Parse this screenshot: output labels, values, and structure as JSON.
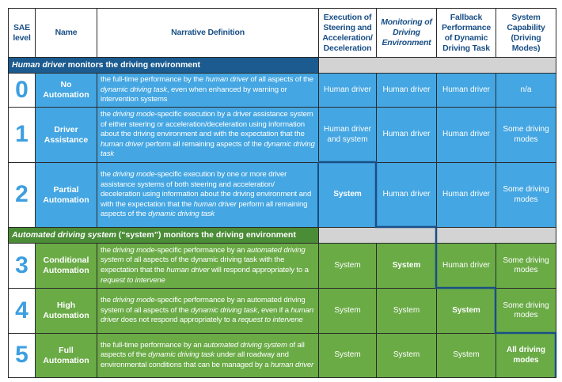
{
  "headers": [
    "SAE level",
    "Name",
    "Narrative Definition",
    "Execution of Steering and Acceleration/ Deceleration",
    "Monitoring of Driving Environment",
    "Fallback Performance of Dynamic Driving Task",
    "System Capability (Driving Modes)"
  ],
  "sections": [
    {
      "segments": [
        {
          "t": "Human driver",
          "i": true
        },
        {
          "t": " monitors the driving environment",
          "i": false
        }
      ]
    },
    {
      "segments": [
        {
          "t": "Automated driving system",
          "i": true
        },
        {
          "t": " (“system”) monitors the driving environment",
          "i": false
        }
      ]
    }
  ],
  "rows": [
    {
      "level": "0",
      "name": "No Automation",
      "definition": [
        {
          "t": "the full-time performance by the ",
          "i": false
        },
        {
          "t": "human driver",
          "i": true
        },
        {
          "t": " of all aspects of the ",
          "i": false
        },
        {
          "t": "dynamic driving task",
          "i": true
        },
        {
          "t": ", even when enhanced by warning or intervention systems",
          "i": false
        }
      ],
      "cells": [
        {
          "t": "Human driver",
          "b": false
        },
        {
          "t": "Human driver",
          "b": false
        },
        {
          "t": "Human driver",
          "b": false
        },
        {
          "t": "n/a",
          "b": false
        }
      ]
    },
    {
      "level": "1",
      "name": "Driver Assistance",
      "definition": [
        {
          "t": "the ",
          "i": false
        },
        {
          "t": "driving mode",
          "i": true
        },
        {
          "t": "-specific execution by a driver assistance system of either steering or acceleration/deceleration using information about the driving environment and with the expectation that the ",
          "i": false
        },
        {
          "t": "human driver",
          "i": true
        },
        {
          "t": " perform all remaining aspects of the ",
          "i": false
        },
        {
          "t": "dynamic driving task",
          "i": true
        }
      ],
      "cells": [
        {
          "t": "Human driver and system",
          "b": false
        },
        {
          "t": "Human driver",
          "b": false
        },
        {
          "t": "Human driver",
          "b": false
        },
        {
          "t": "Some driving modes",
          "b": false
        }
      ]
    },
    {
      "level": "2",
      "name": "Partial Automation",
      "definition": [
        {
          "t": "the ",
          "i": false
        },
        {
          "t": "driving mode",
          "i": true
        },
        {
          "t": "-specific execution by one or more driver assistance systems of both steering and acceleration/ deceleration using information about the driving environment and with the expectation that the ",
          "i": false
        },
        {
          "t": "human driver",
          "i": true
        },
        {
          "t": " perform all remaining aspects of the ",
          "i": false
        },
        {
          "t": "dynamic driving task",
          "i": true
        }
      ],
      "cells": [
        {
          "t": "System",
          "b": true
        },
        {
          "t": "Human driver",
          "b": false
        },
        {
          "t": "Human driver",
          "b": false
        },
        {
          "t": "Some driving modes",
          "b": false
        }
      ]
    },
    {
      "level": "3",
      "name": "Conditional Automation",
      "definition": [
        {
          "t": "the ",
          "i": false
        },
        {
          "t": "driving mode",
          "i": true
        },
        {
          "t": "-specific performance by an ",
          "i": false
        },
        {
          "t": "automated driving system",
          "i": true
        },
        {
          "t": " of all aspects of the dynamic driving task with the expectation that the ",
          "i": false
        },
        {
          "t": "human driver",
          "i": true
        },
        {
          "t": " will respond appropriately to a ",
          "i": false
        },
        {
          "t": "request to intervene",
          "i": true
        }
      ],
      "cells": [
        {
          "t": "System",
          "b": false
        },
        {
          "t": "System",
          "b": true
        },
        {
          "t": "Human driver",
          "b": false
        },
        {
          "t": "Some driving modes",
          "b": false
        }
      ]
    },
    {
      "level": "4",
      "name": "High Automation",
      "definition": [
        {
          "t": "the ",
          "i": false
        },
        {
          "t": "driving mode",
          "i": true
        },
        {
          "t": "-specific performance by an automated driving system of all aspects of the ",
          "i": false
        },
        {
          "t": "dynamic driving task",
          "i": true
        },
        {
          "t": ", even if a ",
          "i": false
        },
        {
          "t": "human driver",
          "i": true
        },
        {
          "t": " does not respond appropriately to a ",
          "i": false
        },
        {
          "t": "request to intervene",
          "i": true
        }
      ],
      "cells": [
        {
          "t": "System",
          "b": false
        },
        {
          "t": "System",
          "b": false
        },
        {
          "t": "System",
          "b": true
        },
        {
          "t": "Some driving modes",
          "b": false
        }
      ]
    },
    {
      "level": "5",
      "name": "Full Automation",
      "definition": [
        {
          "t": "the full-time performance by an ",
          "i": false
        },
        {
          "t": "automated driving system",
          "i": true
        },
        {
          "t": " of all aspects of the ",
          "i": false
        },
        {
          "t": "dynamic driving task",
          "i": true
        },
        {
          "t": " under all roadway and environmental conditions that can be managed by a ",
          "i": false
        },
        {
          "t": "human driver",
          "i": true
        }
      ],
      "cells": [
        {
          "t": "System",
          "b": false
        },
        {
          "t": "System",
          "b": false
        },
        {
          "t": "System",
          "b": false
        },
        {
          "t": "All driving modes",
          "b": true
        }
      ]
    }
  ],
  "colors": {
    "human_rows": "#44a6e2",
    "system_rows": "#6aab46",
    "human_section": "#1b5b8f",
    "system_section": "#4b8c37",
    "level_number": "#3d9fe0",
    "staircase_line": "#1a4f86"
  }
}
